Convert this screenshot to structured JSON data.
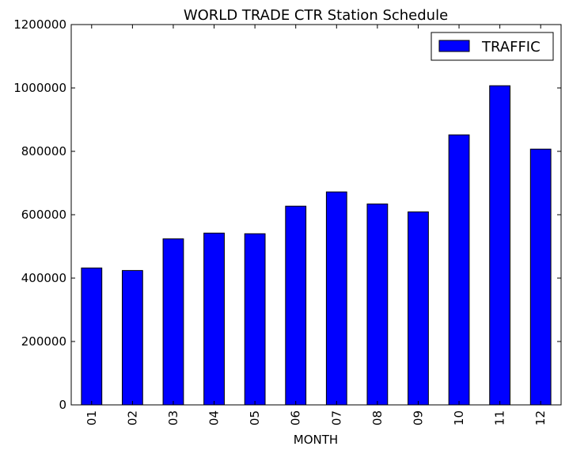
{
  "chart_data": {
    "type": "bar",
    "title": "WORLD TRADE CTR Station Schedule",
    "xlabel": "MONTH",
    "ylabel": "",
    "categories": [
      "01",
      "02",
      "03",
      "04",
      "05",
      "06",
      "07",
      "08",
      "09",
      "10",
      "11",
      "12"
    ],
    "series": [
      {
        "name": "TRAFFIC",
        "values": [
          432000,
          424000,
          524000,
          542000,
          540000,
          627000,
          672000,
          634000,
          609000,
          852000,
          1007000,
          807000
        ]
      }
    ],
    "ylim": [
      0,
      1200000
    ],
    "yticks": [
      "0",
      "200000",
      "400000",
      "600000",
      "800000",
      "1000000",
      "1200000"
    ],
    "grid": false,
    "legend_position": "top-right",
    "colors": {
      "bar_fill": "#0000ff",
      "bar_edge": "#000000",
      "axes": "#000000",
      "background": "#ffffff"
    }
  }
}
